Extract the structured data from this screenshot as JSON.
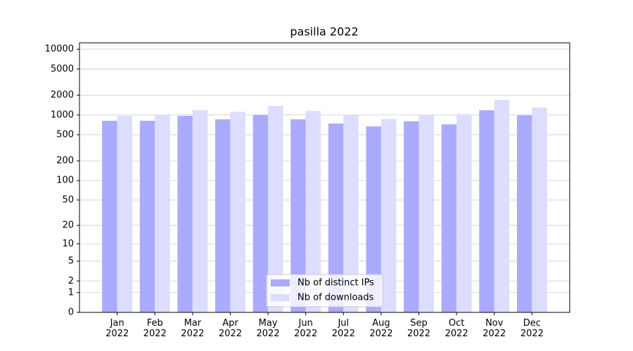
{
  "chart_data": {
    "type": "bar",
    "title": "pasilla 2022",
    "categories": [
      "Jan 2022",
      "Feb 2022",
      "Mar 2022",
      "Apr 2022",
      "May 2022",
      "Jun 2022",
      "Jul 2022",
      "Aug 2022",
      "Sep 2022",
      "Oct 2022",
      "Nov 2022",
      "Dec 2022"
    ],
    "series": [
      {
        "name": "Nb of distinct IPs",
        "color": "#aaaaff",
        "values": [
          816,
          816,
          970,
          860,
          1000,
          860,
          740,
          670,
          800,
          720,
          1180,
          990
        ]
      },
      {
        "name": "Nb of downloads",
        "color": "#ddddff",
        "values": [
          970,
          1000,
          1180,
          1120,
          1370,
          1150,
          1000,
          870,
          1000,
          1030,
          1700,
          1300
        ]
      }
    ],
    "yscale": "log1p",
    "ylim": [
      0,
      12500
    ],
    "yticks": [
      0,
      1,
      2,
      5,
      10,
      20,
      50,
      100,
      200,
      500,
      1000,
      2000,
      5000,
      10000
    ],
    "grid": true,
    "legend": "lower center"
  }
}
